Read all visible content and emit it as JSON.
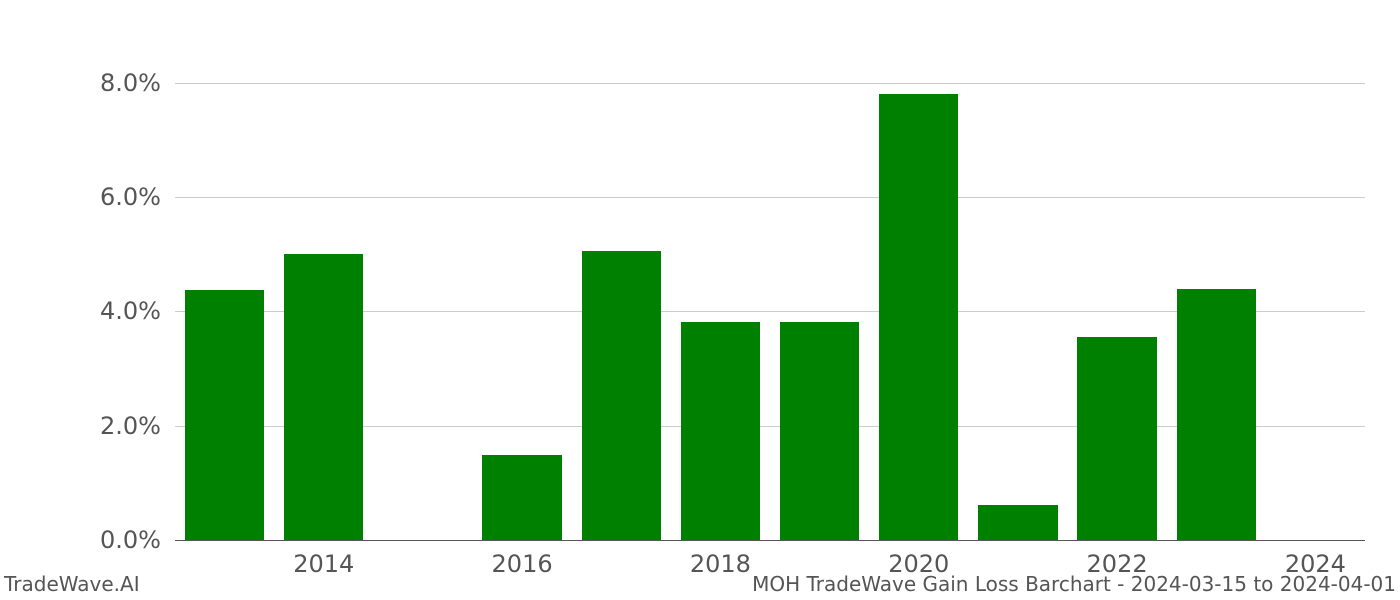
{
  "chart": {
    "type": "bar",
    "background_color": "#ffffff",
    "grid_color": "#cccccc",
    "axis_color": "#555555",
    "tick_label_color": "#555555",
    "tick_fontsize_pt": 18,
    "footer_fontsize_pt": 15,
    "x": {
      "data_min": 2012.5,
      "data_max": 2024.5,
      "tick_values": [
        2014,
        2016,
        2018,
        2020,
        2022,
        2024
      ],
      "tick_labels": [
        "2014",
        "2016",
        "2018",
        "2020",
        "2022",
        "2024"
      ]
    },
    "y": {
      "data_min": 0.0,
      "data_max": 8.4,
      "tick_values": [
        0.0,
        2.0,
        4.0,
        6.0,
        8.0
      ],
      "tick_labels": [
        "0.0%",
        "2.0%",
        "4.0%",
        "6.0%",
        "8.0%"
      ]
    },
    "bar_width_years": 0.8,
    "bars": [
      {
        "year": 2013,
        "value": 4.38,
        "color": "#008000"
      },
      {
        "year": 2014,
        "value": 5.0,
        "color": "#008000"
      },
      {
        "year": 2015,
        "value": 0.0,
        "color": "#008000"
      },
      {
        "year": 2016,
        "value": 1.48,
        "color": "#008000"
      },
      {
        "year": 2017,
        "value": 5.06,
        "color": "#008000"
      },
      {
        "year": 2018,
        "value": 3.82,
        "color": "#008000"
      },
      {
        "year": 2019,
        "value": 3.82,
        "color": "#008000"
      },
      {
        "year": 2020,
        "value": 7.8,
        "color": "#008000"
      },
      {
        "year": 2021,
        "value": 0.62,
        "color": "#008000"
      },
      {
        "year": 2022,
        "value": 3.56,
        "color": "#008000"
      },
      {
        "year": 2023,
        "value": 4.4,
        "color": "#008000"
      },
      {
        "year": 2024,
        "value": 0.0,
        "color": "#008000"
      }
    ]
  },
  "footer": {
    "left": "TradeWave.AI",
    "right": "MOH TradeWave Gain Loss Barchart - 2024-03-15 to 2024-04-01"
  }
}
